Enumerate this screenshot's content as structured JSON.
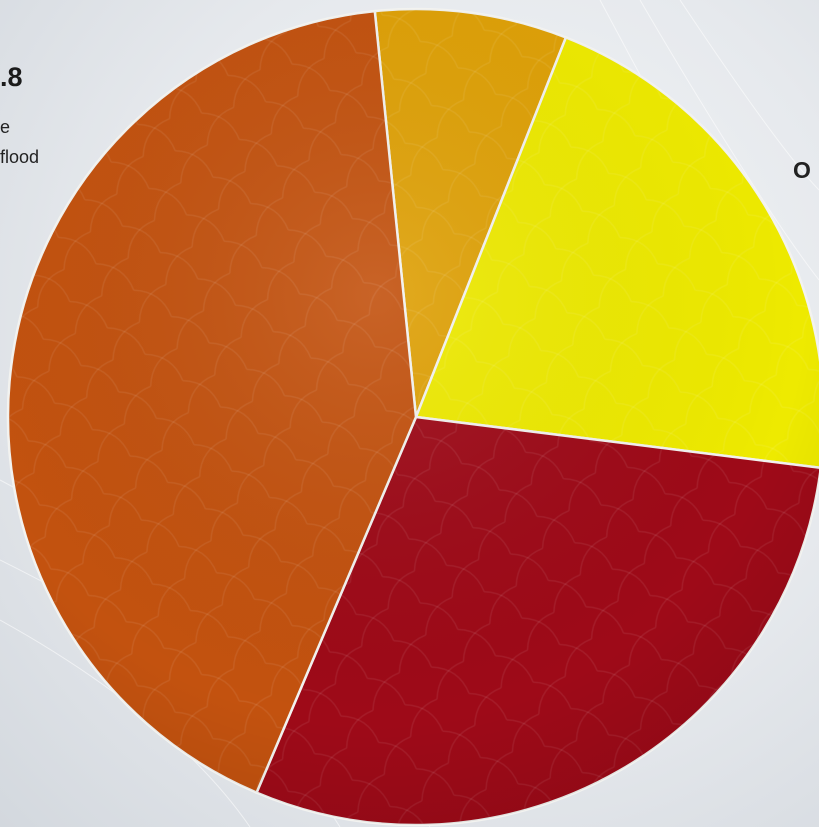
{
  "chart_data": {
    "type": "pie",
    "slices": [
      {
        "label": "",
        "value": 7.6,
        "color": "#dfa107"
      },
      {
        "label": "",
        "value": 21.0,
        "color": "#eeea00"
      },
      {
        "label": "",
        "value": 29.4,
        "color": "#9e0a18"
      },
      {
        "label": "",
        "value": 42.0,
        "color": "#c3520f"
      }
    ],
    "start_angle_deg": -5.8,
    "annotations": {
      "left_value": ".8",
      "left_line1": "e",
      "left_line2": "flood",
      "right_text": "O"
    }
  }
}
